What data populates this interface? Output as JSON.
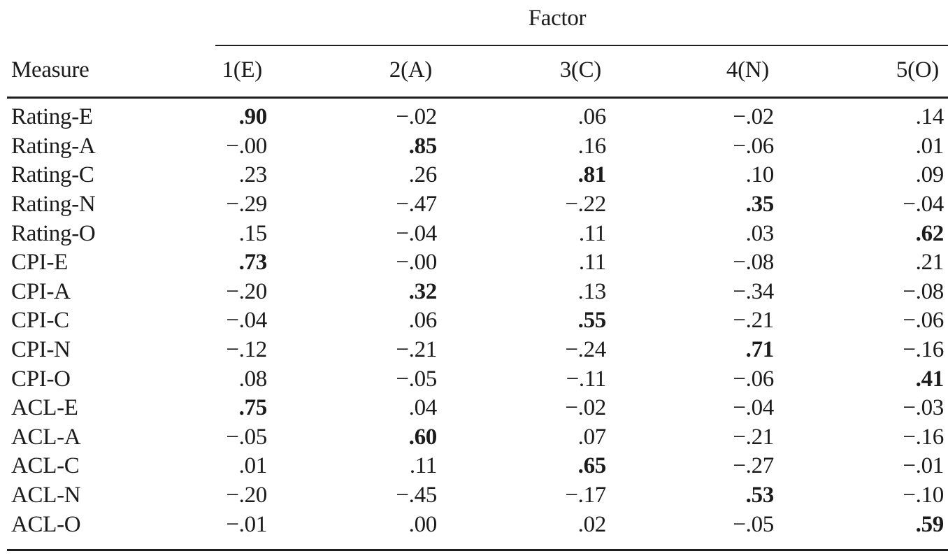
{
  "page": {
    "background_color": "#ffffff",
    "text_color": "#1b1b1b",
    "rule_color": "#1e1e1e"
  },
  "table": {
    "spanner_label": "Factor",
    "column_headers": [
      "Measure",
      "1(E)",
      "2(A)",
      "3(C)",
      "4(N)",
      "5(O)"
    ],
    "rows": [
      {
        "measure": "Rating-E",
        "values": [
          ".90",
          "−.02",
          ".06",
          "−.02",
          ".14"
        ],
        "bold_index": 0
      },
      {
        "measure": "Rating-A",
        "values": [
          "−.00",
          ".85",
          ".16",
          "−.06",
          ".01"
        ],
        "bold_index": 1
      },
      {
        "measure": "Rating-C",
        "values": [
          ".23",
          ".26",
          ".81",
          ".10",
          ".09"
        ],
        "bold_index": 2
      },
      {
        "measure": "Rating-N",
        "values": [
          "−.29",
          "−.47",
          "−.22",
          ".35",
          "−.04"
        ],
        "bold_index": 3
      },
      {
        "measure": "Rating-O",
        "values": [
          ".15",
          "−.04",
          ".11",
          ".03",
          ".62"
        ],
        "bold_index": 4
      },
      {
        "measure": "CPI-E",
        "values": [
          ".73",
          "−.00",
          ".11",
          "−.08",
          ".21"
        ],
        "bold_index": 0
      },
      {
        "measure": "CPI-A",
        "values": [
          "−.20",
          ".32",
          ".13",
          "−.34",
          "−.08"
        ],
        "bold_index": 1
      },
      {
        "measure": "CPI-C",
        "values": [
          "−.04",
          ".06",
          ".55",
          "−.21",
          "−.06"
        ],
        "bold_index": 2
      },
      {
        "measure": "CPI-N",
        "values": [
          "−.12",
          "−.21",
          "−.24",
          ".71",
          "−.16"
        ],
        "bold_index": 3
      },
      {
        "measure": "CPI-O",
        "values": [
          ".08",
          "−.05",
          "−.11",
          "−.06",
          ".41"
        ],
        "bold_index": 4
      },
      {
        "measure": "ACL-E",
        "values": [
          ".75",
          ".04",
          "−.02",
          "−.04",
          "−.03"
        ],
        "bold_index": 0
      },
      {
        "measure": "ACL-A",
        "values": [
          "−.05",
          ".60",
          ".07",
          "−.21",
          "−.16"
        ],
        "bold_index": 1
      },
      {
        "measure": "ACL-C",
        "values": [
          ".01",
          ".11",
          ".65",
          "−.27",
          "−.01"
        ],
        "bold_index": 2
      },
      {
        "measure": "ACL-N",
        "values": [
          "−.20",
          "−.45",
          "−.17",
          ".53",
          "−.10"
        ],
        "bold_index": 3
      },
      {
        "measure": "ACL-O",
        "values": [
          "−.01",
          ".00",
          ".02",
          "−.05",
          ".59"
        ],
        "bold_index": 4
      }
    ]
  }
}
